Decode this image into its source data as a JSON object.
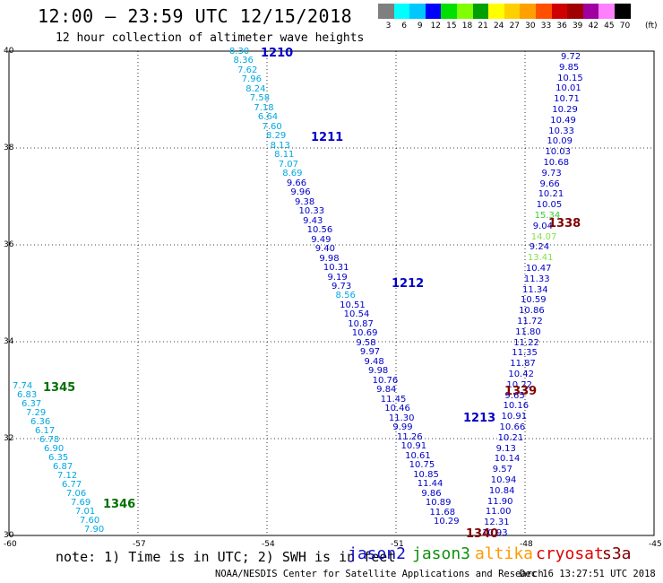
{
  "title": "12:00 – 23:59 UTC 12/15/2018",
  "subtitle": "12 hour collection of altimeter wave heights",
  "footer_center": "NOAA/NESDIS Center for Satellite Applications and Research",
  "footer_time": "Dec 16 13:27:51 UTC 2018",
  "note": "note: 1) Time is in UTC; 2) SWH is in feet",
  "satellites": [
    {
      "name": "jason2",
      "color": "#1010c8"
    },
    {
      "name": "jason3",
      "color": "#109010"
    },
    {
      "name": "altika",
      "color": "#ff9a00"
    },
    {
      "name": "cryosat",
      "color": "#e00000"
    },
    {
      "name": "s3a",
      "color": "#800000"
    }
  ],
  "color_scale": {
    "unit": "(ft)",
    "ticks": [
      "3",
      "6",
      "9",
      "12",
      "15",
      "18",
      "21",
      "24",
      "27",
      "30",
      "33",
      "36",
      "39",
      "42",
      "45",
      "70"
    ],
    "colors": [
      "#7f7f7f",
      "#00ffff",
      "#00c8ff",
      "#0000ff",
      "#00e000",
      "#80ff00",
      "#00a000",
      "#ffff00",
      "#ffd000",
      "#ffa000",
      "#ff5000",
      "#d00000",
      "#a00000",
      "#a000a0",
      "#ff80ff",
      "#000000"
    ]
  },
  "map": {
    "lat_labels": [
      "40",
      "38",
      "36",
      "34",
      "32",
      "30"
    ],
    "lon_labels": [
      "-60",
      "-57",
      "-54",
      "-51",
      "-48",
      "-45"
    ],
    "lat_range": [
      30,
      40
    ],
    "lon_range": [
      -60,
      -45
    ]
  },
  "time_labels": [
    {
      "text": "1210",
      "color": "#0000c8"
    },
    {
      "text": "1211",
      "color": "#0000c8"
    },
    {
      "text": "1212",
      "color": "#0000c8"
    },
    {
      "text": "1213",
      "color": "#0000c8"
    },
    {
      "text": "1338",
      "color": "#800000"
    },
    {
      "text": "1339",
      "color": "#800000"
    },
    {
      "text": "1340",
      "color": "#800000"
    },
    {
      "text": "1345",
      "color": "#007000"
    },
    {
      "text": "1346",
      "color": "#007000"
    }
  ],
  "tracks": {
    "jason2_a": [
      "8.30",
      "8.36",
      "7.62",
      "7.96",
      "8.24",
      "7.58",
      "7.18",
      "6.64",
      "7.60",
      "8.29",
      "8.13",
      "8.11",
      "7.07",
      "8.69",
      "9.66",
      "9.96",
      "9.38",
      "10.33",
      "9.43",
      "10.56",
      "9.49",
      "9.40",
      "9.98",
      "10.31",
      "9.19",
      "9.73",
      "8.56",
      "10.51",
      "10.54",
      "10.87",
      "10.69",
      "9.58",
      "9.97",
      "9.48",
      "9.98",
      "10.76",
      "9.84",
      "11.45",
      "10.46",
      "11.30",
      "9.99",
      "11.26",
      "10.91",
      "10.61",
      "10.75",
      "10.85",
      "11.44",
      "9.86",
      "10.89",
      "11.68",
      "10.29"
    ],
    "s3a": [
      "9.72",
      "9.85",
      "10.15",
      "10.01",
      "10.71",
      "10.29",
      "10.49",
      "10.33",
      "10.09",
      "10.03",
      "10.68",
      "9.73",
      "9.66",
      "10.21",
      "10.05",
      "15.34",
      "9.04",
      "14.07",
      "9.24",
      "13.41",
      "10.47",
      "11.33",
      "11.34",
      "10.59",
      "10.86",
      "11.72",
      "11.80",
      "11.22",
      "11.35",
      "11.87",
      "10.42",
      "10.22",
      "9.65",
      "10.16",
      "10.91",
      "10.66",
      "10.21",
      "9.13",
      "10.14",
      "9.57",
      "10.94",
      "10.84",
      "11.90",
      "11.00",
      "12.31",
      "10.93"
    ],
    "jason3": [
      "7.74",
      "6.83",
      "6.37",
      "7.29",
      "6.36",
      "6.17",
      "6.78",
      "6.90",
      "6.35",
      "6.87",
      "7.12",
      "6.77",
      "7.06",
      "7.69",
      "7.01",
      "7.60",
      "7.90"
    ]
  }
}
